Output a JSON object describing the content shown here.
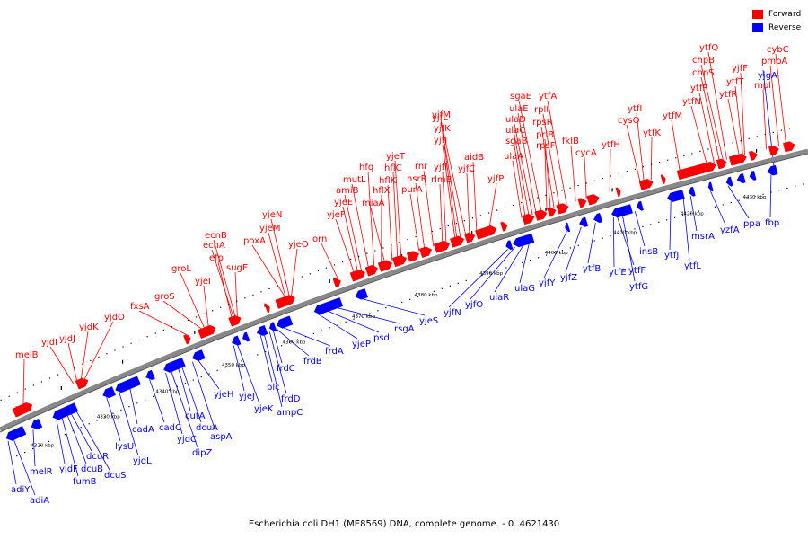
{
  "colors": {
    "forward": "#ff0000",
    "reverse": "#0000ff",
    "backbone": "#888888"
  },
  "legend": [
    {
      "label": "Forward",
      "color": "#ff0000"
    },
    {
      "label": "Reverse",
      "color": "#0000ff"
    }
  ],
  "caption": "Escherichia coli DH1 (ME8569) DNA, complete genome. - 0..4621430",
  "ticks": [
    "4320 kbp",
    "4330 kbp",
    "4340 kbp",
    "4350 kbp",
    "4360 kbp",
    "4370 kbp",
    "4380 kbp",
    "4390 kbp",
    "4400 kbp",
    "4410 kbp",
    "4420 kbp",
    "4430 kbp"
  ],
  "forward_genes": [
    "melB",
    "yjdI",
    "yjdJ",
    "yjdK",
    "yjdO",
    "fxsA",
    "groS",
    "groL",
    "yjeI",
    "efp",
    "ecnA",
    "ecnB",
    "sugE",
    "poxA",
    "yjeM",
    "yjeN",
    "yjeO",
    "orn",
    "yjeF",
    "yjeE",
    "amiB",
    "mutL",
    "hfq",
    "hflX",
    "miaA",
    "hflK",
    "hflC",
    "yjeT",
    "purA",
    "nsrR",
    "rnr",
    "rlmB",
    "yjfI",
    "yjfJ",
    "yjfK",
    "yjfL",
    "yjfM",
    "yjfC",
    "aidB",
    "yjfP",
    "ulaA",
    "sgaB",
    "ulaC",
    "ulaD",
    "ulaE",
    "sgaE",
    "rpsF",
    "priB",
    "rpsR",
    "rplI",
    "ytfA",
    "fklB",
    "cycA",
    "ytfH",
    "cysQ",
    "ytfI",
    "ytfK",
    "ytfM",
    "ytfN",
    "ytfP",
    "chpS",
    "chpB",
    "ytfQ",
    "ytfR",
    "ytfT",
    "yjfF",
    "mpl",
    "pmbA",
    "cybC"
  ],
  "reverse_genes": [
    "adiY",
    "adiA",
    "melR",
    "yjdF",
    "fumB",
    "dcuB",
    "dcuR",
    "dcuS",
    "lysU",
    "yjdL",
    "cadA",
    "cadC",
    "yjdC",
    "dipZ",
    "cutA",
    "dcuA",
    "aspA",
    "yjeH",
    "yjeJ",
    "yjeK",
    "blc",
    "ampC",
    "frdD",
    "frdC",
    "frdB",
    "frdA",
    "yjeP",
    "psd",
    "rsgA",
    "yjeS",
    "yjfN",
    "yjfO",
    "ulaR",
    "ulaG",
    "yjfY",
    "yjfZ",
    "ytfB",
    "ytfE",
    "ytfF",
    "ytfG",
    "insB",
    "ytfJ",
    "ytfL",
    "msrA",
    "yzfA",
    "ppa",
    "yjgA",
    "fbp"
  ]
}
